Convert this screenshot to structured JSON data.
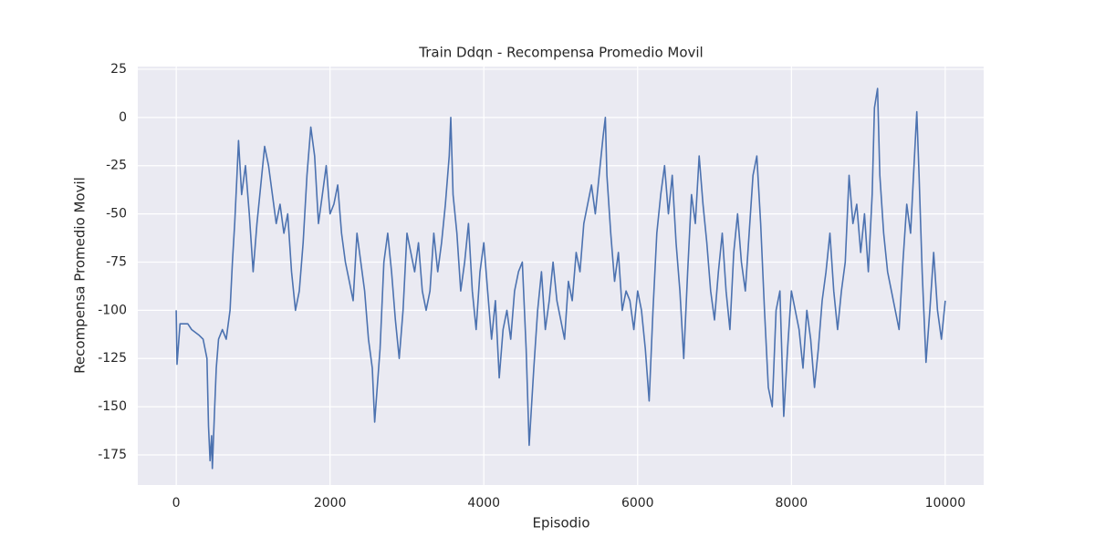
{
  "chart_data": {
    "type": "line",
    "title": "Train Ddqn - Recompensa Promedio Movil",
    "x_label": "Episodio",
    "y_label": "Recompensa Promedio Movil",
    "xlim": [
      -500,
      10500
    ],
    "ylim": [
      -190.6,
      26.4
    ],
    "xticks": [
      0,
      2000,
      4000,
      6000,
      8000,
      10000
    ],
    "yticks": [
      25,
      0,
      -25,
      -50,
      -75,
      -100,
      -125,
      -150,
      -175
    ],
    "grid": true,
    "background": "#eaeaf2",
    "grid_color": "#ffffff",
    "series": [
      {
        "name": "Recompensa Promedio Movil",
        "color": "#4c72b0",
        "x": [
          0,
          10,
          50,
          150,
          200,
          300,
          350,
          400,
          420,
          440,
          460,
          470,
          500,
          520,
          550,
          600,
          650,
          700,
          730,
          760,
          790,
          810,
          850,
          900,
          950,
          1000,
          1050,
          1100,
          1150,
          1200,
          1250,
          1300,
          1350,
          1400,
          1450,
          1500,
          1550,
          1600,
          1650,
          1700,
          1750,
          1800,
          1850,
          1900,
          1950,
          2000,
          2050,
          2100,
          2150,
          2200,
          2250,
          2300,
          2350,
          2400,
          2450,
          2500,
          2550,
          2580,
          2650,
          2700,
          2750,
          2800,
          2850,
          2900,
          2950,
          3000,
          3050,
          3100,
          3150,
          3200,
          3250,
          3300,
          3350,
          3400,
          3450,
          3500,
          3550,
          3570,
          3600,
          3650,
          3700,
          3750,
          3800,
          3850,
          3900,
          3950,
          4000,
          4050,
          4100,
          4150,
          4200,
          4250,
          4300,
          4350,
          4400,
          4450,
          4500,
          4550,
          4590,
          4650,
          4700,
          4750,
          4800,
          4850,
          4900,
          4950,
          5000,
          5050,
          5100,
          5150,
          5200,
          5250,
          5300,
          5350,
          5400,
          5450,
          5500,
          5550,
          5580,
          5600,
          5650,
          5700,
          5750,
          5800,
          5850,
          5900,
          5950,
          6000,
          6050,
          6100,
          6150,
          6200,
          6250,
          6300,
          6350,
          6400,
          6450,
          6500,
          6550,
          6600,
          6650,
          6700,
          6750,
          6800,
          6850,
          6900,
          6950,
          7000,
          7050,
          7100,
          7150,
          7200,
          7250,
          7300,
          7350,
          7400,
          7450,
          7500,
          7550,
          7600,
          7650,
          7700,
          7750,
          7800,
          7850,
          7900,
          7950,
          8000,
          8050,
          8100,
          8150,
          8200,
          8250,
          8300,
          8350,
          8400,
          8450,
          8500,
          8550,
          8600,
          8650,
          8700,
          8750,
          8800,
          8850,
          8900,
          8950,
          9000,
          9050,
          9080,
          9120,
          9150,
          9200,
          9250,
          9300,
          9350,
          9400,
          9450,
          9500,
          9550,
          9600,
          9630,
          9660,
          9700,
          9750,
          9800,
          9850,
          9900,
          9950,
          10000
        ],
        "values": [
          -100,
          -128,
          -107,
          -107,
          -110,
          -113,
          -115,
          -125,
          -160,
          -178,
          -165,
          -182,
          -150,
          -130,
          -115,
          -110,
          -115,
          -100,
          -75,
          -55,
          -30,
          -12,
          -40,
          -25,
          -50,
          -80,
          -55,
          -35,
          -15,
          -25,
          -40,
          -55,
          -45,
          -60,
          -50,
          -80,
          -100,
          -90,
          -65,
          -30,
          -5,
          -20,
          -55,
          -40,
          -25,
          -50,
          -45,
          -35,
          -60,
          -75,
          -85,
          -95,
          -60,
          -75,
          -90,
          -115,
          -130,
          -158,
          -120,
          -75,
          -60,
          -80,
          -105,
          -125,
          -100,
          -60,
          -70,
          -80,
          -65,
          -90,
          -100,
          -90,
          -60,
          -80,
          -65,
          -45,
          -20,
          0,
          -40,
          -60,
          -90,
          -75,
          -55,
          -90,
          -110,
          -80,
          -65,
          -90,
          -115,
          -95,
          -135,
          -110,
          -100,
          -115,
          -90,
          -80,
          -75,
          -120,
          -170,
          -130,
          -100,
          -80,
          -110,
          -95,
          -75,
          -95,
          -105,
          -115,
          -85,
          -95,
          -70,
          -80,
          -55,
          -45,
          -35,
          -50,
          -30,
          -10,
          0,
          -30,
          -60,
          -85,
          -70,
          -100,
          -90,
          -95,
          -110,
          -90,
          -100,
          -120,
          -147,
          -100,
          -60,
          -40,
          -25,
          -50,
          -30,
          -65,
          -90,
          -125,
          -80,
          -40,
          -55,
          -20,
          -45,
          -65,
          -90,
          -105,
          -80,
          -60,
          -90,
          -110,
          -70,
          -50,
          -75,
          -90,
          -60,
          -30,
          -20,
          -55,
          -100,
          -140,
          -150,
          -100,
          -90,
          -155,
          -120,
          -90,
          -100,
          -110,
          -130,
          -100,
          -115,
          -140,
          -120,
          -95,
          -80,
          -60,
          -90,
          -110,
          -90,
          -75,
          -30,
          -55,
          -45,
          -70,
          -50,
          -80,
          -40,
          5,
          15,
          -30,
          -60,
          -80,
          -90,
          -100,
          -110,
          -75,
          -45,
          -60,
          -20,
          3,
          -30,
          -80,
          -127,
          -100,
          -70,
          -100,
          -115,
          -95
        ]
      }
    ]
  }
}
